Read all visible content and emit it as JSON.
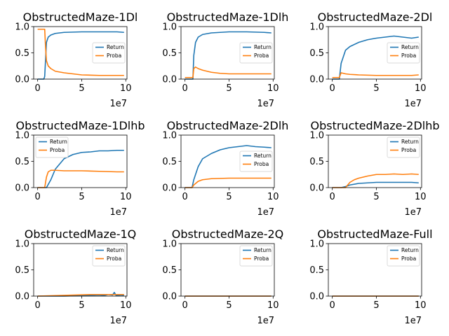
{
  "colors": {
    "Return": "#1f77b4",
    "Proba": "#ff7f0e"
  },
  "x_offset_label": "1e7",
  "chart_data": [
    {
      "type": "line",
      "title": "ObstructedMaze-1Dl",
      "xlim": [
        0,
        10000000
      ],
      "ylim": [
        0,
        1
      ],
      "xticks": [
        0,
        5000000,
        10000000
      ],
      "xtick_labels": [
        "0",
        "5",
        "10"
      ],
      "yticks": [
        0,
        0.5,
        1
      ],
      "ytick_labels": [
        "0.0",
        "0.5",
        "1.0"
      ],
      "legend": [
        "Return",
        "Proba"
      ],
      "legend_loc": "center right",
      "grid": false,
      "series": [
        {
          "name": "Return",
          "x": [
            0,
            700000,
            800000,
            1000000,
            1200000,
            1500000,
            2000000,
            3000000,
            5000000,
            7000000,
            9000000,
            9800000
          ],
          "y": [
            0,
            0,
            0.05,
            0.7,
            0.8,
            0.84,
            0.87,
            0.89,
            0.9,
            0.9,
            0.9,
            0.89
          ]
        },
        {
          "name": "Proba",
          "x": [
            0,
            800000,
            900000,
            1000000,
            1200000,
            1500000,
            2000000,
            3000000,
            4000000,
            5000000,
            7000000,
            9000000,
            9800000
          ],
          "y": [
            0.95,
            0.95,
            0.6,
            0.35,
            0.25,
            0.2,
            0.15,
            0.12,
            0.1,
            0.08,
            0.07,
            0.07,
            0.07
          ]
        }
      ]
    },
    {
      "type": "line",
      "title": "ObstructedMaze-1Dlh",
      "xlim": [
        0,
        10000000
      ],
      "ylim": [
        0,
        1
      ],
      "xticks": [
        0,
        5000000,
        10000000
      ],
      "xtick_labels": [
        "0",
        "5",
        "10"
      ],
      "yticks": [
        0,
        0.5,
        1
      ],
      "ytick_labels": [
        "0.0",
        "0.5",
        "1.0"
      ],
      "legend": [
        "Return",
        "Proba"
      ],
      "legend_loc": "center right",
      "grid": false,
      "series": [
        {
          "name": "Return",
          "x": [
            0,
            900000,
            1000000,
            1200000,
            1500000,
            2000000,
            3000000,
            5000000,
            7000000,
            9000000,
            9800000
          ],
          "y": [
            0,
            0,
            0.45,
            0.7,
            0.8,
            0.85,
            0.88,
            0.9,
            0.9,
            0.89,
            0.88
          ]
        },
        {
          "name": "Proba",
          "x": [
            0,
            900000,
            1000000,
            1200000,
            1500000,
            2000000,
            3000000,
            4000000,
            5000000,
            7000000,
            9800000
          ],
          "y": [
            0.03,
            0.03,
            0.2,
            0.23,
            0.2,
            0.17,
            0.13,
            0.11,
            0.1,
            0.1,
            0.1
          ]
        }
      ]
    },
    {
      "type": "line",
      "title": "ObstructedMaze-2Dl",
      "xlim": [
        0,
        10000000
      ],
      "ylim": [
        0,
        1
      ],
      "xticks": [
        0,
        5000000,
        10000000
      ],
      "xtick_labels": [
        "0",
        "5",
        "10"
      ],
      "yticks": [
        0,
        0.5,
        1
      ],
      "ytick_labels": [
        "0.0",
        "0.5",
        "1.0"
      ],
      "legend": [
        "Return",
        "Proba"
      ],
      "legend_loc": "center right",
      "grid": false,
      "series": [
        {
          "name": "Return",
          "x": [
            0,
            800000,
            1000000,
            1500000,
            2000000,
            3000000,
            4000000,
            5000000,
            6000000,
            7000000,
            8000000,
            9000000,
            9800000
          ],
          "y": [
            0,
            0,
            0.3,
            0.55,
            0.62,
            0.7,
            0.75,
            0.78,
            0.8,
            0.82,
            0.8,
            0.78,
            0.8
          ]
        },
        {
          "name": "Proba",
          "x": [
            0,
            800000,
            1000000,
            1500000,
            2000000,
            3000000,
            5000000,
            7000000,
            9000000,
            9800000
          ],
          "y": [
            0.03,
            0.03,
            0.12,
            0.1,
            0.09,
            0.08,
            0.07,
            0.07,
            0.07,
            0.08
          ]
        }
      ]
    },
    {
      "type": "line",
      "title": "ObstructedMaze-1Dlhb",
      "xlim": [
        0,
        10000000
      ],
      "ylim": [
        0,
        1
      ],
      "xticks": [
        0,
        5000000,
        10000000
      ],
      "xtick_labels": [
        "0",
        "5",
        "10"
      ],
      "yticks": [
        0,
        0.5,
        1
      ],
      "ytick_labels": [
        "0.0",
        "0.5",
        "1.0"
      ],
      "legend": [
        "Return",
        "Proba"
      ],
      "legend_loc": "upper left",
      "grid": false,
      "series": [
        {
          "name": "Return",
          "x": [
            0,
            1000000,
            1500000,
            2000000,
            3000000,
            4000000,
            5000000,
            6000000,
            7000000,
            8000000,
            9000000,
            9800000
          ],
          "y": [
            0,
            0,
            0.15,
            0.35,
            0.55,
            0.63,
            0.67,
            0.68,
            0.7,
            0.7,
            0.71,
            0.71
          ]
        },
        {
          "name": "Proba",
          "x": [
            0,
            800000,
            1000000,
            1200000,
            1500000,
            2000000,
            3000000,
            5000000,
            7000000,
            9000000,
            9800000
          ],
          "y": [
            0,
            0,
            0.2,
            0.3,
            0.33,
            0.33,
            0.32,
            0.32,
            0.31,
            0.3,
            0.3
          ]
        }
      ]
    },
    {
      "type": "line",
      "title": "ObstructedMaze-2Dlh",
      "xlim": [
        0,
        10000000
      ],
      "ylim": [
        0,
        1
      ],
      "xticks": [
        0,
        5000000,
        10000000
      ],
      "xtick_labels": [
        "0",
        "5",
        "10"
      ],
      "yticks": [
        0,
        0.5,
        1
      ],
      "ytick_labels": [
        "0.0",
        "0.5",
        "1.0"
      ],
      "legend": [
        "Return",
        "Proba"
      ],
      "legend_loc": "center right",
      "grid": false,
      "series": [
        {
          "name": "Return",
          "x": [
            0,
            800000,
            1000000,
            1500000,
            2000000,
            3000000,
            4000000,
            5000000,
            6000000,
            7000000,
            8000000,
            9000000,
            9800000
          ],
          "y": [
            0,
            0,
            0.15,
            0.4,
            0.55,
            0.65,
            0.72,
            0.76,
            0.78,
            0.8,
            0.78,
            0.77,
            0.76
          ]
        },
        {
          "name": "Proba",
          "x": [
            0,
            800000,
            1000000,
            1500000,
            2000000,
            3000000,
            5000000,
            7000000,
            9000000,
            9800000
          ],
          "y": [
            0,
            0,
            0.05,
            0.12,
            0.15,
            0.17,
            0.18,
            0.18,
            0.18,
            0.18
          ]
        }
      ]
    },
    {
      "type": "line",
      "title": "ObstructedMaze-2Dlhb",
      "xlim": [
        0,
        10000000
      ],
      "ylim": [
        0,
        1
      ],
      "xticks": [
        0,
        5000000,
        10000000
      ],
      "xtick_labels": [
        "0",
        "5",
        "10"
      ],
      "yticks": [
        0,
        0.5,
        1
      ],
      "ytick_labels": [
        "0.0",
        "0.5",
        "1.0"
      ],
      "legend": [
        "Return",
        "Proba"
      ],
      "legend_loc": "upper right",
      "grid": false,
      "series": [
        {
          "name": "Return",
          "x": [
            0,
            1000000,
            1500000,
            2000000,
            3000000,
            4000000,
            5000000,
            6000000,
            7000000,
            8000000,
            9000000,
            9800000
          ],
          "y": [
            0,
            0,
            0.02,
            0.05,
            0.08,
            0.09,
            0.1,
            0.1,
            0.1,
            0.1,
            0.1,
            0.09
          ]
        },
        {
          "name": "Proba",
          "x": [
            0,
            1500000,
            2000000,
            2500000,
            3000000,
            4000000,
            5000000,
            6000000,
            7000000,
            8000000,
            9000000,
            9800000
          ],
          "y": [
            0,
            0,
            0.1,
            0.15,
            0.18,
            0.22,
            0.25,
            0.25,
            0.26,
            0.25,
            0.26,
            0.25
          ]
        }
      ]
    },
    {
      "type": "line",
      "title": "ObstructedMaze-1Q",
      "xlim": [
        0,
        10000000
      ],
      "ylim": [
        0,
        1
      ],
      "xticks": [
        0,
        5000000,
        10000000
      ],
      "xtick_labels": [
        "0",
        "5",
        "10"
      ],
      "yticks": [
        0,
        0.5,
        1
      ],
      "ytick_labels": [
        "0.0",
        "0.5",
        "1.0"
      ],
      "legend": [
        "Return",
        "Proba"
      ],
      "legend_loc": "upper right",
      "grid": false,
      "series": [
        {
          "name": "Return",
          "x": [
            0,
            3000000,
            5000000,
            7000000,
            7500000,
            8000000,
            8500000,
            8700000,
            8900000,
            9500000,
            9800000
          ],
          "y": [
            0,
            0,
            0.01,
            0.02,
            0.01,
            0.03,
            0.02,
            0.07,
            0.01,
            0.02,
            0.01
          ]
        },
        {
          "name": "Proba",
          "x": [
            0,
            2000000,
            4000000,
            6000000,
            8000000,
            9800000
          ],
          "y": [
            0,
            0.01,
            0.02,
            0.03,
            0.03,
            0.03
          ]
        }
      ]
    },
    {
      "type": "line",
      "title": "ObstructedMaze-2Q",
      "xlim": [
        0,
        10000000
      ],
      "ylim": [
        0,
        1
      ],
      "xticks": [
        0,
        5000000,
        10000000
      ],
      "xtick_labels": [
        "0",
        "5",
        "10"
      ],
      "yticks": [
        0,
        0.5,
        1
      ],
      "ytick_labels": [
        "0.0",
        "0.5",
        "1.0"
      ],
      "legend": [
        "Return",
        "Proba"
      ],
      "legend_loc": "upper right",
      "grid": false,
      "series": [
        {
          "name": "Return",
          "x": [
            0,
            9800000
          ],
          "y": [
            0,
            0
          ]
        },
        {
          "name": "Proba",
          "x": [
            0,
            9800000
          ],
          "y": [
            0,
            0
          ]
        }
      ]
    },
    {
      "type": "line",
      "title": "ObstructedMaze-Full",
      "xlim": [
        0,
        10000000
      ],
      "ylim": [
        0,
        1
      ],
      "xticks": [
        0,
        5000000,
        10000000
      ],
      "xtick_labels": [
        "0",
        "5",
        "10"
      ],
      "yticks": [
        0,
        0.5,
        1
      ],
      "ytick_labels": [
        "0.0",
        "0.5",
        "1.0"
      ],
      "legend": [
        "Return",
        "Proba"
      ],
      "legend_loc": "upper right",
      "grid": false,
      "series": [
        {
          "name": "Return",
          "x": [
            0,
            9800000
          ],
          "y": [
            0,
            0
          ]
        },
        {
          "name": "Proba",
          "x": [
            0,
            9800000
          ],
          "y": [
            0,
            0
          ]
        }
      ]
    }
  ]
}
